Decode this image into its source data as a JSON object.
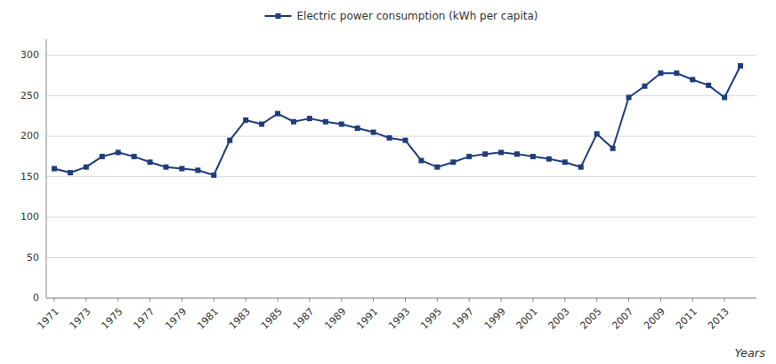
{
  "chart_data": {
    "type": "line",
    "xlabel": "Years",
    "x": [
      1971,
      1972,
      1973,
      1974,
      1975,
      1976,
      1977,
      1978,
      1979,
      1980,
      1981,
      1982,
      1983,
      1984,
      1985,
      1986,
      1987,
      1988,
      1989,
      1990,
      1991,
      1992,
      1993,
      1994,
      1995,
      1996,
      1997,
      1998,
      1999,
      2000,
      2001,
      2002,
      2003,
      2004,
      2005,
      2006,
      2007,
      2008,
      2009,
      2010,
      2011,
      2012,
      2013,
      2014
    ],
    "series": [
      {
        "name": "Electric power consumption (kWh per capita)",
        "color": "#1F3D7A",
        "marker": "square",
        "values": [
          160,
          155,
          162,
          175,
          180,
          175,
          168,
          162,
          160,
          158,
          152,
          195,
          220,
          215,
          228,
          218,
          222,
          218,
          215,
          210,
          205,
          198,
          195,
          170,
          162,
          168,
          175,
          178,
          180,
          178,
          175,
          172,
          168,
          162,
          203,
          185,
          248,
          262,
          278,
          278,
          270,
          263,
          248,
          287
        ]
      }
    ],
    "xlim": [
      1970.5,
      2015
    ],
    "xticks": [
      1971,
      1973,
      1975,
      1977,
      1979,
      1981,
      1983,
      1985,
      1987,
      1989,
      1991,
      1993,
      1995,
      1997,
      1999,
      2001,
      2003,
      2005,
      2007,
      2009,
      2011,
      2013
    ],
    "ylim": [
      0,
      320
    ],
    "yticks": [
      0,
      50,
      100,
      150,
      200,
      250,
      300
    ],
    "grid": true,
    "legend": "top"
  }
}
